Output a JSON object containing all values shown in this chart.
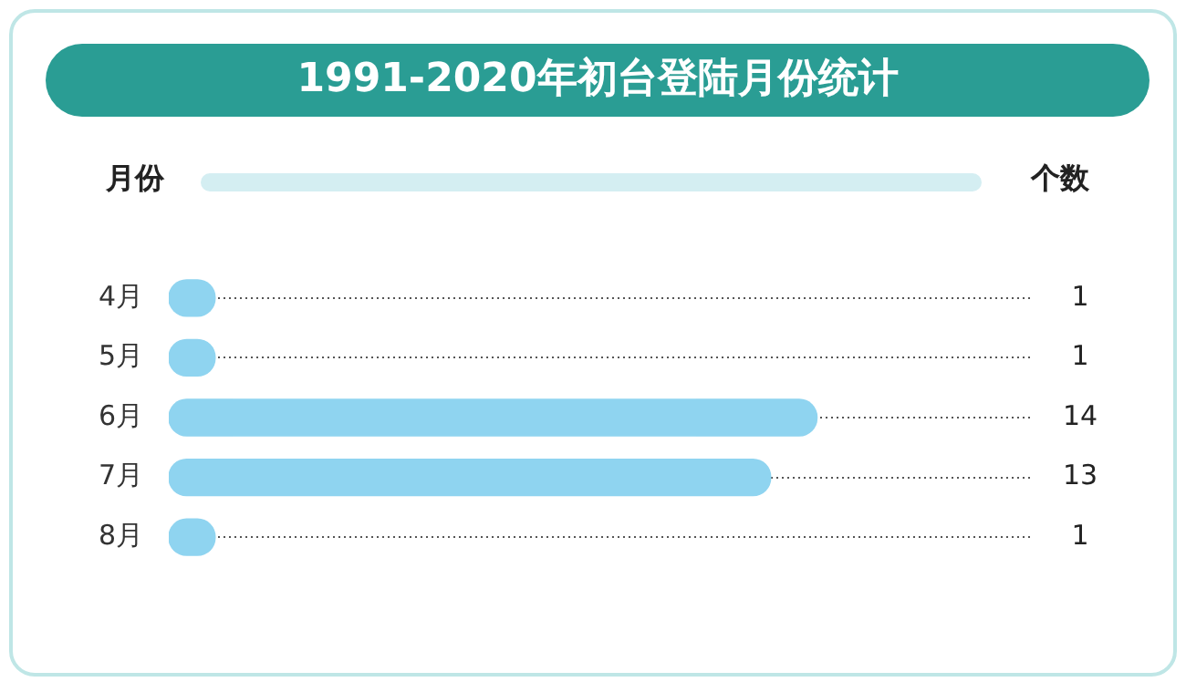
{
  "chart_data": {
    "type": "bar",
    "orientation": "horizontal",
    "title": "1991-2020年初台登陆月份统计",
    "ylabel": "月份",
    "annotations": [
      "个数"
    ],
    "categories": [
      "4月",
      "5月",
      "6月",
      "7月",
      "8月"
    ],
    "values": [
      1,
      1,
      14,
      13,
      1
    ],
    "color": "#8fd4f0",
    "data_labels": true,
    "grid": "y",
    "legend": false
  }
}
